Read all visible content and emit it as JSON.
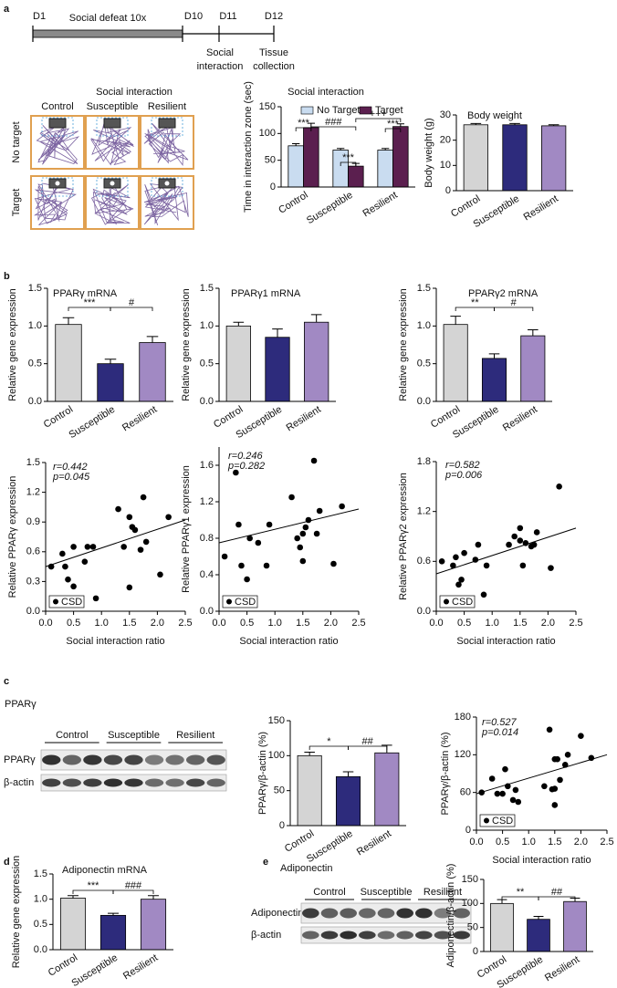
{
  "panel_labels": [
    "a",
    "b",
    "c",
    "d",
    "e"
  ],
  "timeline": {
    "d1": "D1",
    "defeat": "Social defeat 10x",
    "d10": "D10",
    "d11": "D11",
    "d12": "D12",
    "social": [
      "Social",
      "interaction"
    ],
    "tissue": [
      "Tissue",
      "collection"
    ]
  },
  "tracks": {
    "title": "Social interaction",
    "columns": [
      "Control",
      "Susceptible",
      "Resilient"
    ],
    "rows": [
      "No target",
      "Target"
    ]
  },
  "blot_c": {
    "title": "PPARγ",
    "groups": [
      "Control",
      "Susceptible",
      "Resilient"
    ],
    "rows": [
      "PPARγ",
      "β-actin"
    ]
  },
  "blot_e": {
    "title": "Adiponectin",
    "groups": [
      "Control",
      "Susceptible",
      "Resilient"
    ],
    "rows": [
      "Adiponectin",
      "β-actin"
    ]
  },
  "chart_data": [
    {
      "type": "grouped_bar",
      "title": "Social interaction",
      "ylabel": "Time in interaction zone (sec)",
      "categories": [
        "Control",
        "Susceptible",
        "Resilient"
      ],
      "series": [
        {
          "name": "No Target",
          "color": "#c9dcf0",
          "values": [
            77,
            69,
            69
          ],
          "errors": [
            4,
            3,
            3
          ]
        },
        {
          "name": "Target",
          "color": "#5b1f4f",
          "values": [
            111,
            39,
            113
          ],
          "errors": [
            8,
            5,
            5
          ]
        }
      ],
      "ylim": [
        0,
        150
      ],
      "yticks": [
        0,
        50,
        100,
        150
      ],
      "annotations": [
        "***",
        "###",
        "+++",
        "***",
        "***"
      ]
    },
    {
      "type": "bar",
      "title": "Body weight",
      "ylabel": "Body weight (g)",
      "categories": [
        "Control",
        "Susceptible",
        "Resilient"
      ],
      "values": [
        26.1,
        26.1,
        25.7
      ],
      "errors": [
        0.5,
        0.5,
        0.4
      ],
      "colors": [
        "#d4d4d4",
        "#2d2b7c",
        "#a189c3"
      ],
      "ylim": [
        0,
        30
      ],
      "yticks": [
        0,
        10,
        20,
        30
      ],
      "annotations": []
    },
    {
      "type": "bar",
      "title": "PPARγ mRNA",
      "ylabel": "Relative gene expression",
      "categories": [
        "Control",
        "Susceptible",
        "Resilient"
      ],
      "values": [
        1.02,
        0.5,
        0.78
      ],
      "errors": [
        0.09,
        0.06,
        0.08
      ],
      "colors": [
        "#d4d4d4",
        "#2d2b7c",
        "#a189c3"
      ],
      "ylim": [
        0,
        1.5
      ],
      "yticks": [
        {
          "value": 0,
          "label": "0.0"
        },
        0.5,
        {
          "value": 1,
          "label": "1.0"
        },
        1.5
      ],
      "annotations": [
        "***",
        "#"
      ]
    },
    {
      "type": "bar",
      "title": "PPARγ1 mRNA",
      "ylabel": "Relative gene expression",
      "categories": [
        "Control",
        "Susceptible",
        "Resilient"
      ],
      "values": [
        1.0,
        0.85,
        1.05
      ],
      "errors": [
        0.05,
        0.11,
        0.1
      ],
      "colors": [
        "#d4d4d4",
        "#2d2b7c",
        "#a189c3"
      ],
      "ylim": [
        0,
        1.5
      ],
      "yticks": [
        {
          "value": 0,
          "label": "0.0"
        },
        0.5,
        {
          "value": 1,
          "label": "1.0"
        },
        1.5
      ],
      "annotations": []
    },
    {
      "type": "bar",
      "title": "PPARγ2 mRNA",
      "ylabel": "Relative gene expression",
      "categories": [
        "Control",
        "Susceptible",
        "Resilient"
      ],
      "values": [
        1.02,
        0.57,
        0.87
      ],
      "errors": [
        0.11,
        0.06,
        0.08
      ],
      "colors": [
        "#d4d4d4",
        "#2d2b7c",
        "#a189c3"
      ],
      "ylim": [
        0,
        1.5
      ],
      "yticks": [
        {
          "value": 0,
          "label": "0.0"
        },
        0.5,
        {
          "value": 1,
          "label": "1.0"
        },
        1.5
      ],
      "annotations": [
        "**",
        "#"
      ]
    },
    {
      "type": "scatter",
      "xlabel": "Social interaction ratio",
      "ylabel": "Relative PPARγ expression",
      "stats": [
        "r=0.442",
        "p=0.045"
      ],
      "xlim": [
        0,
        2.5
      ],
      "xticks": [
        {
          "value": 0,
          "label": "0.0"
        },
        0.5,
        {
          "value": 1,
          "label": "1.0"
        },
        1.5,
        {
          "value": 2,
          "label": "2.0"
        },
        2.5
      ],
      "ylim": [
        0,
        1.5
      ],
      "yticks": [
        {
          "value": 0,
          "label": "0.0"
        },
        0.3,
        0.6,
        0.9,
        1.2,
        1.5
      ],
      "series": [
        {
          "name": "CSD",
          "color": "#000000",
          "x": [
            0.1,
            0.3,
            0.35,
            0.4,
            0.5,
            0.5,
            0.7,
            0.75,
            0.85,
            0.9,
            1.3,
            1.4,
            1.5,
            1.5,
            1.55,
            1.6,
            1.7,
            1.75,
            1.8,
            2.05,
            2.2
          ],
          "values": [
            0.45,
            0.58,
            0.45,
            0.32,
            0.25,
            0.65,
            0.5,
            0.65,
            0.65,
            0.13,
            1.03,
            0.65,
            0.95,
            0.24,
            0.85,
            0.82,
            0.62,
            1.15,
            0.7,
            0.37,
            0.95
          ]
        }
      ],
      "fit_x": [
        0,
        2.5
      ],
      "fit_y": [
        0.45,
        0.92
      ]
    },
    {
      "type": "scatter",
      "xlabel": "Social interaction ratio",
      "ylabel": "Relative PPARγ1 expression",
      "stats": [
        "r=0.246",
        "p=0.282"
      ],
      "xlim": [
        0,
        2.5
      ],
      "xticks": [
        {
          "value": 0,
          "label": "0.0"
        },
        0.5,
        {
          "value": 1,
          "label": "1.0"
        },
        1.5,
        {
          "value": 2,
          "label": "2.0"
        },
        2.5
      ],
      "ylim": [
        0,
        1.8
      ],
      "yticks": [
        {
          "value": 0,
          "label": "0.0"
        },
        0.4,
        0.8,
        1.2,
        1.6
      ],
      "series": [
        {
          "name": "CSD",
          "color": "#000000",
          "x": [
            0.1,
            0.3,
            0.35,
            0.4,
            0.5,
            0.55,
            0.7,
            0.85,
            0.9,
            1.3,
            1.4,
            1.45,
            1.5,
            1.5,
            1.55,
            1.6,
            1.7,
            1.75,
            1.8,
            2.05,
            2.2
          ],
          "values": [
            0.6,
            1.52,
            0.95,
            0.5,
            0.35,
            0.8,
            0.75,
            0.5,
            0.95,
            1.25,
            0.8,
            0.7,
            0.85,
            0.55,
            0.92,
            1.0,
            1.65,
            0.85,
            1.1,
            0.52,
            1.15
          ]
        }
      ],
      "fit_x": [
        0,
        2.5
      ],
      "fit_y": [
        0.75,
        1.12
      ]
    },
    {
      "type": "scatter",
      "xlabel": "Social interaction ratio",
      "ylabel": "Relative PPARγ2 expression",
      "stats": [
        "r=0.582",
        "p=0.006"
      ],
      "xlim": [
        0,
        2.5
      ],
      "xticks": [
        {
          "value": 0,
          "label": "0.0"
        },
        0.5,
        {
          "value": 1,
          "label": "1.0"
        },
        1.5,
        {
          "value": 2,
          "label": "2.0"
        },
        2.5
      ],
      "ylim": [
        0,
        1.8
      ],
      "yticks": [
        {
          "value": 0,
          "label": "0.0"
        },
        0.6,
        1.2,
        1.8
      ],
      "series": [
        {
          "name": "CSD",
          "color": "#000000",
          "x": [
            0.1,
            0.3,
            0.35,
            0.4,
            0.45,
            0.5,
            0.7,
            0.75,
            0.85,
            0.9,
            1.3,
            1.4,
            1.5,
            1.5,
            1.55,
            1.6,
            1.7,
            1.75,
            1.8,
            2.05,
            2.2
          ],
          "values": [
            0.6,
            0.55,
            0.65,
            0.32,
            0.38,
            0.7,
            0.62,
            0.8,
            0.2,
            0.55,
            0.8,
            0.9,
            0.85,
            1.0,
            0.55,
            0.82,
            0.78,
            0.8,
            0.95,
            0.52,
            1.5
          ]
        }
      ],
      "fit_x": [
        0,
        2.5
      ],
      "fit_y": [
        0.45,
        1.0
      ]
    },
    {
      "type": "bar",
      "ylabel": "PPARγ/β-actin (%)",
      "categories": [
        "Control",
        "Susceptible",
        "Resilient"
      ],
      "values": [
        100,
        70,
        104
      ],
      "errors": [
        5,
        7,
        11
      ],
      "colors": [
        "#d4d4d4",
        "#2d2b7c",
        "#a189c3"
      ],
      "ylim": [
        0,
        150
      ],
      "yticks": [
        0,
        50,
        100,
        150
      ],
      "annotations": [
        "*",
        "##"
      ]
    },
    {
      "type": "scatter",
      "xlabel": "Social interaction ratio",
      "ylabel": "PPARγ/β-actin (%)",
      "stats": [
        "r=0.527",
        "p=0.014"
      ],
      "xlim": [
        0,
        2.5
      ],
      "xticks": [
        {
          "value": 0,
          "label": "0.0"
        },
        0.5,
        {
          "value": 1,
          "label": "1.0"
        },
        1.5,
        {
          "value": 2,
          "label": "2.0"
        },
        2.5
      ],
      "ylim": [
        0,
        180
      ],
      "yticks": [
        0,
        60,
        120,
        180
      ],
      "series": [
        {
          "name": "CSD",
          "color": "#000000",
          "x": [
            0.1,
            0.3,
            0.4,
            0.5,
            0.55,
            0.6,
            0.7,
            0.75,
            0.8,
            1.3,
            1.4,
            1.45,
            1.5,
            1.5,
            1.5,
            1.55,
            1.6,
            1.7,
            1.75,
            2.0,
            2.2
          ],
          "values": [
            60,
            82,
            58,
            58,
            97,
            70,
            48,
            64,
            45,
            70,
            160,
            65,
            40,
            66,
            113,
            113,
            80,
            104,
            120,
            150,
            115
          ]
        }
      ],
      "fit_x": [
        0,
        2.5
      ],
      "fit_y": [
        58,
        120
      ]
    },
    {
      "type": "bar",
      "title": "Adiponectin mRNA",
      "ylabel": "Relative gene expression",
      "categories": [
        "Control",
        "Susceptible",
        "Resilient"
      ],
      "values": [
        1.02,
        0.68,
        1.0
      ],
      "errors": [
        0.05,
        0.04,
        0.07
      ],
      "colors": [
        "#d4d4d4",
        "#2d2b7c",
        "#a189c3"
      ],
      "ylim": [
        0,
        1.5
      ],
      "yticks": [
        {
          "value": 0,
          "label": "0.0"
        },
        0.5,
        {
          "value": 1,
          "label": "1.0"
        },
        1.5
      ],
      "annotations": [
        "***",
        "###"
      ]
    },
    {
      "type": "bar",
      "ylabel": "Adiponectin/β-actin (%)",
      "categories": [
        "Control",
        "Susceptible",
        "Resilient"
      ],
      "values": [
        100,
        67,
        104
      ],
      "errors": [
        8,
        6,
        7
      ],
      "colors": [
        "#d4d4d4",
        "#2d2b7c",
        "#a189c3"
      ],
      "ylim": [
        0,
        150
      ],
      "yticks": [
        0,
        50,
        100,
        150
      ],
      "annotations": [
        "**",
        "##"
      ]
    }
  ]
}
